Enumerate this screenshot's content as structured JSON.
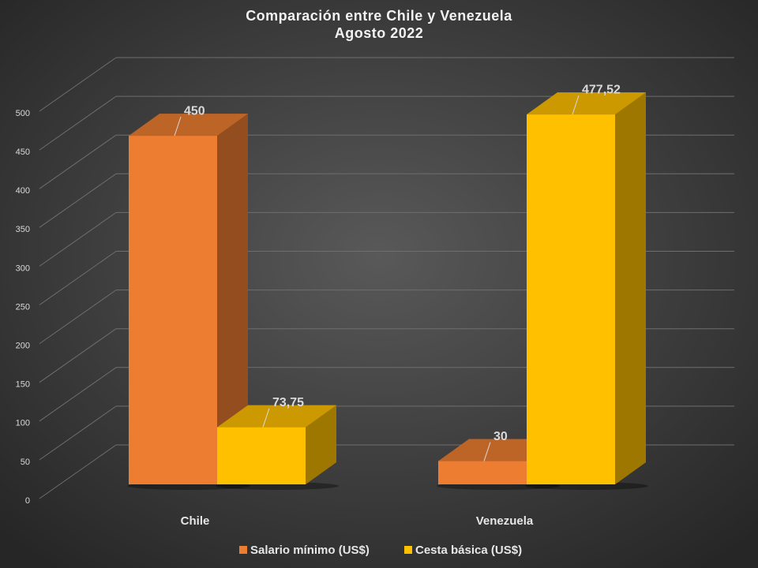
{
  "chart_data": {
    "type": "bar3d",
    "title": "Comparación entre Chile y Venezuela",
    "subtitle": "Agosto 2022",
    "categories": [
      "Chile",
      "Venezuela"
    ],
    "series": [
      {
        "name": "Salario mínimo (US$)",
        "color": "#ed7d31",
        "values": [
          450,
          30
        ],
        "value_labels": [
          "450",
          "30"
        ]
      },
      {
        "name": "Cesta básica (US$)",
        "color": "#ffc000",
        "values": [
          73.75,
          477.52
        ],
        "value_labels": [
          "73,75",
          "477,52"
        ]
      }
    ],
    "ylim": [
      0,
      500
    ],
    "yticks": [
      0,
      50,
      100,
      150,
      200,
      250,
      300,
      350,
      400,
      450,
      500
    ],
    "grid": true,
    "legend": "bottom"
  }
}
